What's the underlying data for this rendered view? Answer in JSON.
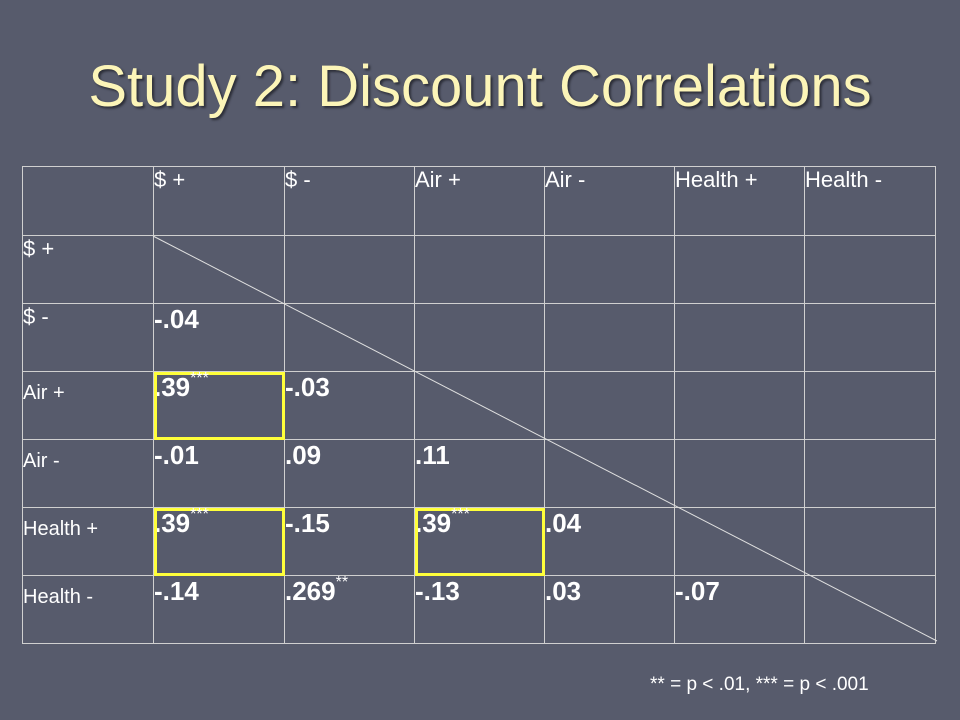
{
  "title": "Study 2: Discount Correlations",
  "columns": [
    "",
    "$ +",
    "$ -",
    "Air +",
    "Air -",
    "Health +",
    "Health -"
  ],
  "rows": [
    {
      "label": "$ +",
      "cells": [
        {
          "v": "",
          "sig": ""
        },
        {
          "v": "",
          "sig": ""
        },
        {
          "v": "",
          "sig": ""
        },
        {
          "v": "",
          "sig": ""
        },
        {
          "v": "",
          "sig": ""
        },
        {
          "v": "",
          "sig": ""
        }
      ]
    },
    {
      "label": "$ -",
      "cells": [
        {
          "v": "-.04",
          "sig": ""
        },
        {
          "v": "",
          "sig": ""
        },
        {
          "v": "",
          "sig": ""
        },
        {
          "v": "",
          "sig": ""
        },
        {
          "v": "",
          "sig": ""
        },
        {
          "v": "",
          "sig": ""
        }
      ]
    },
    {
      "label": "Air +",
      "cells": [
        {
          "v": ".39",
          "sig": "***",
          "highlight": true
        },
        {
          "v": "-.03",
          "sig": ""
        },
        {
          "v": "",
          "sig": ""
        },
        {
          "v": "",
          "sig": ""
        },
        {
          "v": "",
          "sig": ""
        },
        {
          "v": "",
          "sig": ""
        }
      ]
    },
    {
      "label": "Air -",
      "cells": [
        {
          "v": "-.01",
          "sig": ""
        },
        {
          "v": ".09",
          "sig": ""
        },
        {
          "v": ".11",
          "sig": ""
        },
        {
          "v": "",
          "sig": ""
        },
        {
          "v": "",
          "sig": ""
        },
        {
          "v": "",
          "sig": ""
        }
      ]
    },
    {
      "label": "Health +",
      "cells": [
        {
          "v": ".39",
          "sig": "***",
          "highlight": true
        },
        {
          "v": "-.15",
          "sig": ""
        },
        {
          "v": ".39",
          "sig": "***",
          "highlight": true
        },
        {
          "v": ".04",
          "sig": ""
        },
        {
          "v": "",
          "sig": ""
        },
        {
          "v": "",
          "sig": ""
        }
      ]
    },
    {
      "label": "Health -",
      "cells": [
        {
          "v": "-.14",
          "sig": ""
        },
        {
          "v": ".269",
          "sig": "**"
        },
        {
          "v": "-.13",
          "sig": ""
        },
        {
          "v": ".03",
          "sig": ""
        },
        {
          "v": "-.07",
          "sig": ""
        },
        {
          "v": "",
          "sig": ""
        }
      ]
    }
  ],
  "footnote": "** = p < .01, *** = p < .001",
  "colors": {
    "background": "#575b6c",
    "title": "#fcf5b8",
    "highlight": "#ffff3a"
  }
}
